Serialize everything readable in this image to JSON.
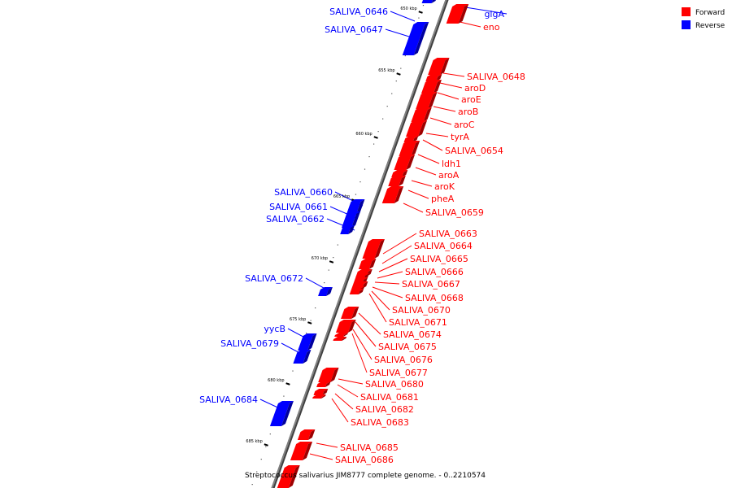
{
  "caption": "Streptococcus salivarius JIM8777 complete genome. - 0..2210574",
  "legend": [
    {
      "label": "Forward",
      "color": "#ff0000"
    },
    {
      "label": "Reverse",
      "color": "#0000ff"
    }
  ],
  "colors": {
    "forward": "#ff0000",
    "reverse": "#0000ff",
    "backbone": "#808080"
  },
  "ticks": [
    "650 kbp",
    "655 kbp",
    "660 kbp",
    "665 kbp",
    "670 kbp",
    "675 kbp",
    "680 kbp",
    "685 kbp"
  ],
  "genes": {
    "reverse": [
      "glgA",
      "SALIVA_0646",
      "SALIVA_0647",
      "SALIVA_0660",
      "SALIVA_0661",
      "SALIVA_0662",
      "SALIVA_0672",
      "yycB",
      "SALIVA_0679",
      "SALIVA_0684"
    ],
    "forward": [
      "eno",
      "SALIVA_0648",
      "aroD",
      "aroE",
      "aroB",
      "aroC",
      "tyrA",
      "SALIVA_0654",
      "ldh1",
      "aroA",
      "aroK",
      "pheA",
      "SALIVA_0659",
      "SALIVA_0663",
      "SALIVA_0664",
      "SALIVA_0665",
      "SALIVA_0666",
      "SALIVA_0667",
      "SALIVA_0668",
      "SALIVA_0670",
      "SALIVA_0671",
      "SALIVA_0674",
      "SALIVA_0675",
      "SALIVA_0676",
      "SALIVA_0677",
      "SALIVA_0680",
      "SALIVA_0681",
      "SALIVA_0682",
      "SALIVA_0683",
      "SALIVA_0685",
      "SALIVA_0686"
    ]
  }
}
